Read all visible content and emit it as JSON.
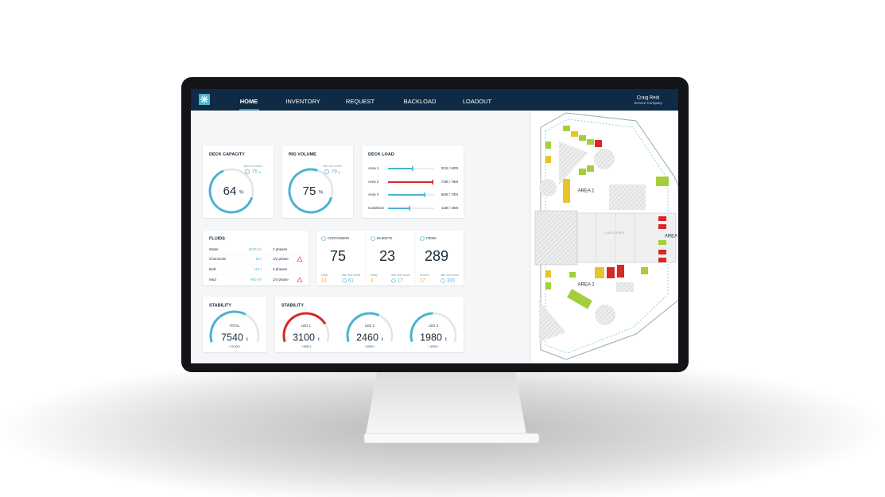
{
  "nav": {
    "items": [
      "HOME",
      "INVENTORY",
      "REQUEST",
      "BACKLOAD",
      "LOADOUT"
    ],
    "user": "Craig Reid",
    "company": "Service Company"
  },
  "deck_capacity": {
    "title": "DECK CAPACITY",
    "value": 64,
    "unit": "%",
    "next_label": "after next vessel",
    "next_value": 75,
    "next_unit": "%",
    "color": "#4ab3d0"
  },
  "rig_volume": {
    "title": "RIG VOLUME",
    "value": 75,
    "unit": "%",
    "next_label": "after next vessel",
    "next_value": 79,
    "next_unit": "%",
    "color": "#4ab3d0"
  },
  "deck_load": {
    "title": "DECK LOAD",
    "rows": [
      {
        "name": "Area 1",
        "load": 321,
        "capacity": 600,
        "text": "321t / 600t",
        "color": "#4ab3d0"
      },
      {
        "name": "Area 2",
        "load": 730,
        "capacity": 750,
        "text": "730t / 750t",
        "color": "#d62828"
      },
      {
        "name": "Area 3",
        "load": 560,
        "capacity": 700,
        "text": "560t / 700t",
        "color": "#4ab3d0"
      },
      {
        "name": "Cantilever",
        "load": 118,
        "capacity": 250,
        "text": "118t / 250t",
        "color": "#4ab3d0"
      }
    ]
  },
  "fluids": {
    "title": "FLUIDS",
    "rows": [
      {
        "name": "Water",
        "amount": "2670 m³",
        "phases": "2 phases",
        "warning": false
      },
      {
        "name": "Chemicals",
        "amount": "50 l",
        "phases": "1/2 phase",
        "warning": true
      },
      {
        "name": "Bulk",
        "amount": "110 t",
        "phases": "3 phases",
        "warning": false
      },
      {
        "name": "Mud",
        "amount": "900 m³",
        "phases": "1/4 phase",
        "warning": true
      }
    ]
  },
  "counts": [
    {
      "label": "CONTAINERS",
      "value": 75,
      "left_label": "empty",
      "left_value": 13,
      "right_label": "after next vessel",
      "right_value": 61
    },
    {
      "label": "BASKETS",
      "value": 23,
      "left_label": "empty",
      "left_value": 4,
      "right_label": "after next vessel",
      "right_value": 17
    },
    {
      "label": "ITEMS",
      "value": 289,
      "left_label": "no need",
      "left_value": 17,
      "right_label": "after next vessel",
      "right_value": 320
    }
  ],
  "stability_total": {
    "title": "STABILITY",
    "label": "TOTAL",
    "value": 7540,
    "unit": "t",
    "max": 12000,
    "max_label": "/ 12,000 t",
    "color": "#4ab3d0"
  },
  "stability_legs": {
    "title": "STABILITY",
    "legs": [
      {
        "label": "LEG 1",
        "value": 3100,
        "unit": "t",
        "max": 4000,
        "max_label": "/ 4000 t",
        "color": "#d62828"
      },
      {
        "label": "LEG 2",
        "value": 2460,
        "unit": "t",
        "max": 4000,
        "max_label": "/ 4000 t",
        "color": "#4ab3d0"
      },
      {
        "label": "LEG 3",
        "value": 1980,
        "unit": "t",
        "max": 4000,
        "max_label": "/ 4000 t",
        "color": "#4ab3d0"
      }
    ]
  },
  "map": {
    "areas": [
      "AREA 1",
      "AREA 2",
      "AREA"
    ],
    "cantilever": "CANTILEVER"
  }
}
